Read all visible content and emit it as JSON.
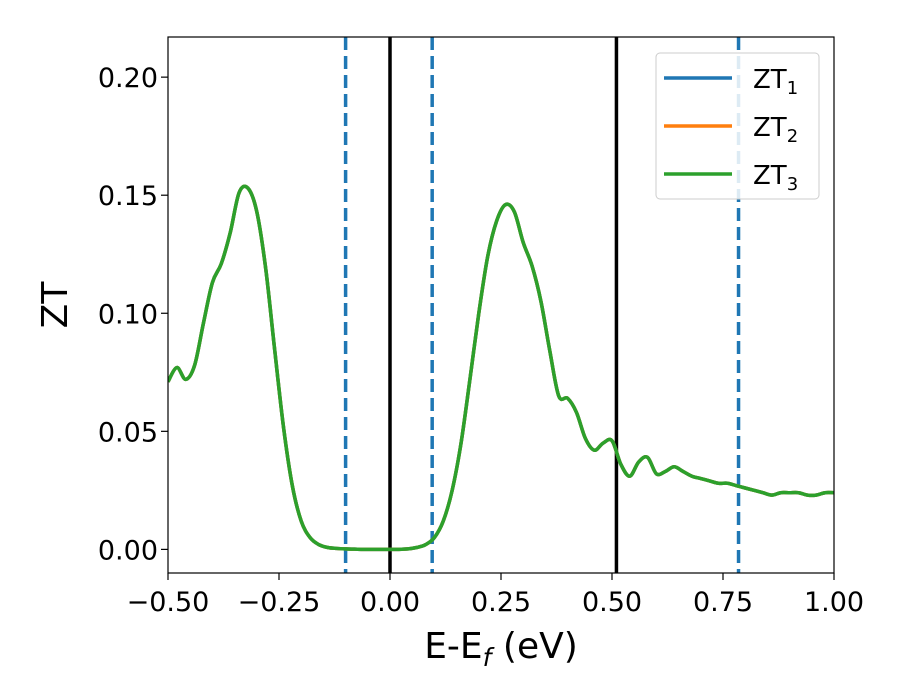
{
  "chart_data": {
    "type": "line",
    "xlabel": "E-E_f (eV)",
    "ylabel": "ZT",
    "xlim": [
      -0.5,
      1.0
    ],
    "ylim": [
      -0.01,
      0.217
    ],
    "x_ticks": [
      -0.5,
      -0.25,
      0.0,
      0.25,
      0.5,
      0.75,
      1.0
    ],
    "x_tick_labels": [
      "−0.50",
      "−0.25",
      "0.00",
      "0.25",
      "0.50",
      "0.75",
      "1.00"
    ],
    "y_ticks": [
      0.0,
      0.05,
      0.1,
      0.15,
      0.2
    ],
    "y_tick_labels": [
      "0.00",
      "0.05",
      "0.10",
      "0.15",
      "0.20"
    ],
    "grid": false,
    "legend_position": "top-right",
    "series": [
      {
        "name": "ZT",
        "sub": "1",
        "color": "#1f77b4"
      },
      {
        "name": "ZT",
        "sub": "2",
        "color": "#ff7f0e"
      },
      {
        "name": "ZT",
        "sub": "3",
        "color": "#2ca02c"
      }
    ],
    "curve": {
      "x": [
        -0.5,
        -0.48,
        -0.46,
        -0.44,
        -0.42,
        -0.4,
        -0.38,
        -0.36,
        -0.34,
        -0.32,
        -0.3,
        -0.28,
        -0.26,
        -0.24,
        -0.22,
        -0.2,
        -0.18,
        -0.16,
        -0.14,
        -0.12,
        -0.1,
        -0.08,
        -0.06,
        -0.04,
        -0.02,
        0.0,
        0.02,
        0.04,
        0.06,
        0.08,
        0.1,
        0.12,
        0.14,
        0.16,
        0.18,
        0.2,
        0.22,
        0.24,
        0.26,
        0.28,
        0.3,
        0.32,
        0.34,
        0.36,
        0.38,
        0.4,
        0.42,
        0.44,
        0.46,
        0.48,
        0.5,
        0.52,
        0.54,
        0.56,
        0.58,
        0.6,
        0.62,
        0.64,
        0.66,
        0.68,
        0.7,
        0.72,
        0.74,
        0.76,
        0.78,
        0.8,
        0.82,
        0.84,
        0.86,
        0.88,
        0.9,
        0.92,
        0.94,
        0.96,
        0.98,
        1.0
      ],
      "y": [
        0.071,
        0.077,
        0.072,
        0.078,
        0.096,
        0.113,
        0.121,
        0.134,
        0.151,
        0.153,
        0.143,
        0.119,
        0.085,
        0.052,
        0.027,
        0.012,
        0.005,
        0.002,
        0.0008,
        0.0004,
        0.0002,
        0.0001,
        0.0,
        0.0,
        0.0,
        0.0,
        0.0,
        0.0002,
        0.0008,
        0.002,
        0.005,
        0.012,
        0.025,
        0.045,
        0.072,
        0.1,
        0.124,
        0.139,
        0.146,
        0.143,
        0.13,
        0.12,
        0.105,
        0.084,
        0.065,
        0.064,
        0.058,
        0.047,
        0.042,
        0.045,
        0.046,
        0.036,
        0.031,
        0.037,
        0.039,
        0.032,
        0.033,
        0.035,
        0.033,
        0.031,
        0.03,
        0.029,
        0.028,
        0.028,
        0.027,
        0.026,
        0.025,
        0.024,
        0.023,
        0.024,
        0.024,
        0.024,
        0.023,
        0.023,
        0.024,
        0.024
      ]
    },
    "vertical_lines": [
      {
        "x": 0.0,
        "style": "solid",
        "color": "#000000"
      },
      {
        "x": 0.51,
        "style": "solid",
        "color": "#000000"
      },
      {
        "x": -0.1,
        "style": "dashed",
        "color": "#1f77b4"
      },
      {
        "x": 0.095,
        "style": "dashed",
        "color": "#1f77b4"
      },
      {
        "x": 0.785,
        "style": "dashed",
        "color": "#1f77b4"
      }
    ]
  }
}
